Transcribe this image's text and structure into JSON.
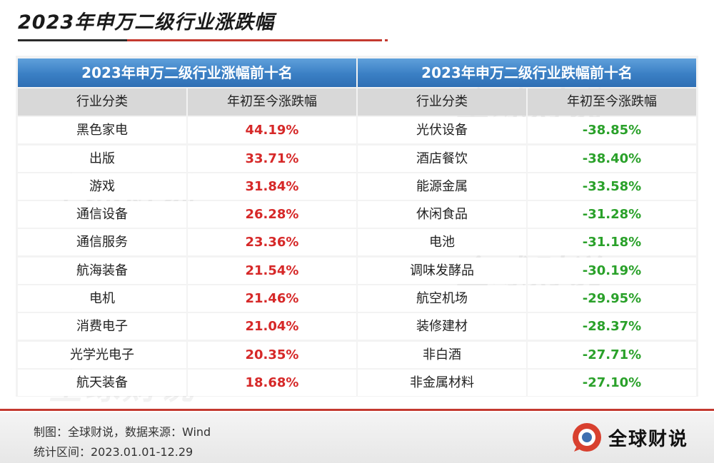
{
  "page": {
    "title": "2023年申万二级行业涨跌幅"
  },
  "watermark_text": "全球财说",
  "left_table": {
    "heading": "2023年申万二级行业涨幅前十名",
    "col_industry": "行业分类",
    "col_change": "年初至今涨跌幅",
    "rows": [
      {
        "name": "黑色家电",
        "value": "44.19%"
      },
      {
        "name": "出版",
        "value": "33.71%"
      },
      {
        "name": "游戏",
        "value": "31.84%"
      },
      {
        "name": "通信设备",
        "value": "26.28%"
      },
      {
        "name": "通信服务",
        "value": "23.36%"
      },
      {
        "name": "航海装备",
        "value": "21.54%"
      },
      {
        "name": "电机",
        "value": "21.46%"
      },
      {
        "name": "消费电子",
        "value": "21.04%"
      },
      {
        "name": "光学光电子",
        "value": "20.35%"
      },
      {
        "name": "航天装备",
        "value": "18.68%"
      }
    ]
  },
  "right_table": {
    "heading": "2023年申万二级行业跌幅前十名",
    "col_industry": "行业分类",
    "col_change": "年初至今涨跌幅",
    "rows": [
      {
        "name": "光伏设备",
        "value": "-38.85%"
      },
      {
        "name": "酒店餐饮",
        "value": "-38.40%"
      },
      {
        "name": "能源金属",
        "value": "-33.58%"
      },
      {
        "name": "休闲食品",
        "value": "-31.28%"
      },
      {
        "name": "电池",
        "value": "-31.18%"
      },
      {
        "name": "调味发酵品",
        "value": "-30.19%"
      },
      {
        "name": "航空机场",
        "value": "-29.95%"
      },
      {
        "name": "装修建材",
        "value": "-28.37%"
      },
      {
        "name": "非白酒",
        "value": "-27.71%"
      },
      {
        "name": "非金属材料",
        "value": "-27.10%"
      }
    ]
  },
  "footer": {
    "source": "制图：全球财说，数据来源：Wind",
    "period": "统计区间：2023.01.01-12.29",
    "logo_text": "全球财说",
    "logo_icon": "speech-bubble-logo-icon"
  },
  "colors": {
    "up": "#d62828",
    "down": "#2aa12a",
    "header_blue": "#3a7fc4",
    "accent_red": "#c4392f"
  }
}
